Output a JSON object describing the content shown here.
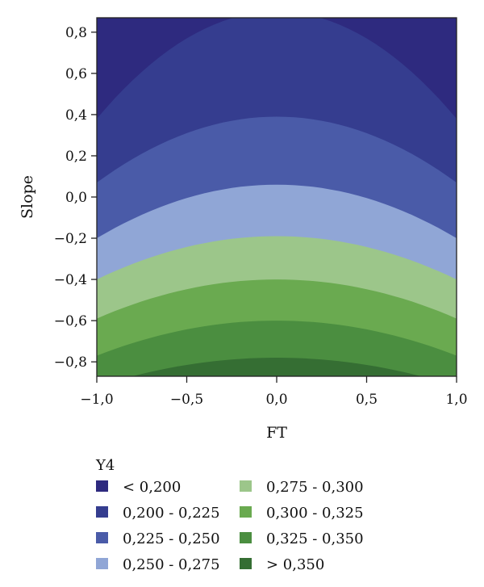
{
  "chart_data": {
    "type": "heatmap",
    "subtype": "filled-contour",
    "xlabel": "FT",
    "ylabel": "Slope",
    "xlim": [
      -1.0,
      1.0
    ],
    "ylim": [
      -0.87,
      0.87
    ],
    "xticks": [
      "−1,0",
      "−0,5",
      "0,0",
      "0,5",
      "1,0"
    ],
    "xtick_values": [
      -1.0,
      -0.5,
      0.0,
      0.5,
      1.0
    ],
    "yticks": [
      "0,8",
      "0,6",
      "0,4",
      "0,2",
      "0,0",
      "−0,2",
      "−0,4",
      "−0,6",
      "−0,8"
    ],
    "ytick_values": [
      0.8,
      0.6,
      0.4,
      0.2,
      0.0,
      -0.2,
      -0.4,
      -0.6,
      -0.8
    ],
    "contour_boundaries": [
      {
        "level": 0.2,
        "y_at_ft_0": 0.9,
        "y_at_ft_pm1": 0.38
      },
      {
        "level": 0.225,
        "y_at_ft_0": 0.39,
        "y_at_ft_pm1": 0.07
      },
      {
        "level": 0.25,
        "y_at_ft_0": 0.06,
        "y_at_ft_pm1": -0.2
      },
      {
        "level": 0.275,
        "y_at_ft_0": -0.19,
        "y_at_ft_pm1": -0.4
      },
      {
        "level": 0.3,
        "y_at_ft_0": -0.4,
        "y_at_ft_pm1": -0.59
      },
      {
        "level": 0.325,
        "y_at_ft_0": -0.6,
        "y_at_ft_pm1": -0.77
      },
      {
        "level": 0.35,
        "y_at_ft_0": -0.78,
        "y_at_ft_pm1": -0.92
      }
    ],
    "legend": {
      "title": "Y4",
      "placement": "bottom",
      "entries": [
        {
          "label": "< 0,200",
          "color": "#2e2a7f"
        },
        {
          "label": "0,200 - 0,225",
          "color": "#353d8f"
        },
        {
          "label": "0,225 - 0,250",
          "color": "#4a5ba8"
        },
        {
          "label": "0,250 - 0,275",
          "color": "#90a6d6"
        },
        {
          "label": "0,275 - 0,300",
          "color": "#9cc68a"
        },
        {
          "label": "0,300 - 0,325",
          "color": "#6aaa50"
        },
        {
          "label": "0,325 - 0,350",
          "color": "#4b8e40"
        },
        {
          "label": "> 0,350",
          "color": "#356e33"
        }
      ]
    }
  }
}
